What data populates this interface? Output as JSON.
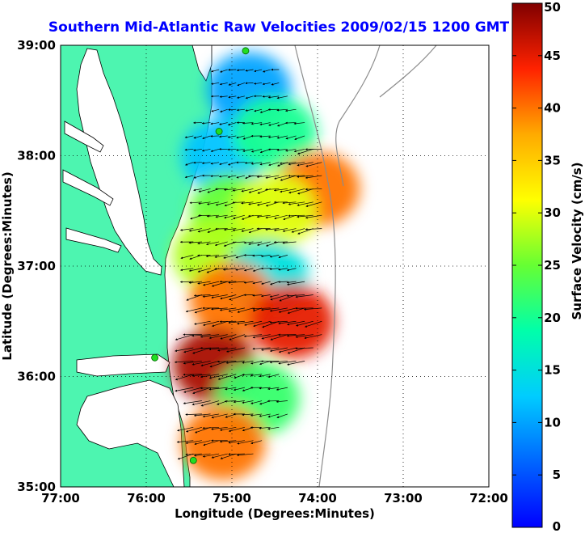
{
  "title": "Southern Mid-Atlantic Raw Velocities 2009/02/15 1200 GMT",
  "title_color": "#0000ff",
  "map": {
    "xlabel": "Longitude (Degrees:Minutes)",
    "ylabel": "Latitude (Degrees:Minutes)",
    "lon_range": [
      -77,
      -72
    ],
    "lat_range": [
      35,
      39
    ],
    "lon_ticks": [
      -77,
      -76,
      -75,
      -74,
      -73,
      -72
    ],
    "lon_tick_labels": [
      "77:00",
      "76:00",
      "75:00",
      "74:00",
      "73:00",
      "72:00"
    ],
    "lat_ticks": [
      35,
      36,
      37,
      38,
      39
    ],
    "lat_tick_labels": [
      "35:00",
      "36:00",
      "37:00",
      "38:00",
      "39:00"
    ],
    "grid": "dotted",
    "land_color": "#4df5b0",
    "water_color": "#ffffff",
    "coast_color": "#000000",
    "bathymetry_color": "#8c8c8c",
    "stations_color": "#22dd22"
  },
  "colorbar": {
    "label": "Surface Velocity (cm/s)",
    "min": 0,
    "max": 50,
    "ticks": [
      0,
      5,
      10,
      15,
      20,
      25,
      30,
      35,
      40,
      45,
      50
    ],
    "tick_labels": [
      "0",
      "5",
      "10",
      "15",
      "20",
      "25",
      "30",
      "35",
      "40",
      "45",
      "50"
    ],
    "colormap": "jet"
  },
  "chart_data": {
    "type": "heatmap",
    "variable": "surface current speed with direction vectors",
    "units": "cm/s",
    "vector_direction": "predominantly toward the southwest",
    "regions": [
      {
        "lon": -74.8,
        "lat": 38.6,
        "speed": 10
      },
      {
        "lon": -75.1,
        "lat": 38.0,
        "speed": 12
      },
      {
        "lon": -74.5,
        "lat": 38.2,
        "speed": 20
      },
      {
        "lon": -74.0,
        "lat": 37.7,
        "speed": 40
      },
      {
        "lon": -75.0,
        "lat": 37.5,
        "speed": 25
      },
      {
        "lon": -74.5,
        "lat": 37.5,
        "speed": 30
      },
      {
        "lon": -75.2,
        "lat": 37.1,
        "speed": 28
      },
      {
        "lon": -74.6,
        "lat": 36.9,
        "speed": 15
      },
      {
        "lon": -75.0,
        "lat": 36.7,
        "speed": 40
      },
      {
        "lon": -74.3,
        "lat": 36.5,
        "speed": 45
      },
      {
        "lon": -75.2,
        "lat": 36.1,
        "speed": 48
      },
      {
        "lon": -74.7,
        "lat": 35.8,
        "speed": 22
      },
      {
        "lon": -75.1,
        "lat": 35.4,
        "speed": 40
      }
    ]
  }
}
